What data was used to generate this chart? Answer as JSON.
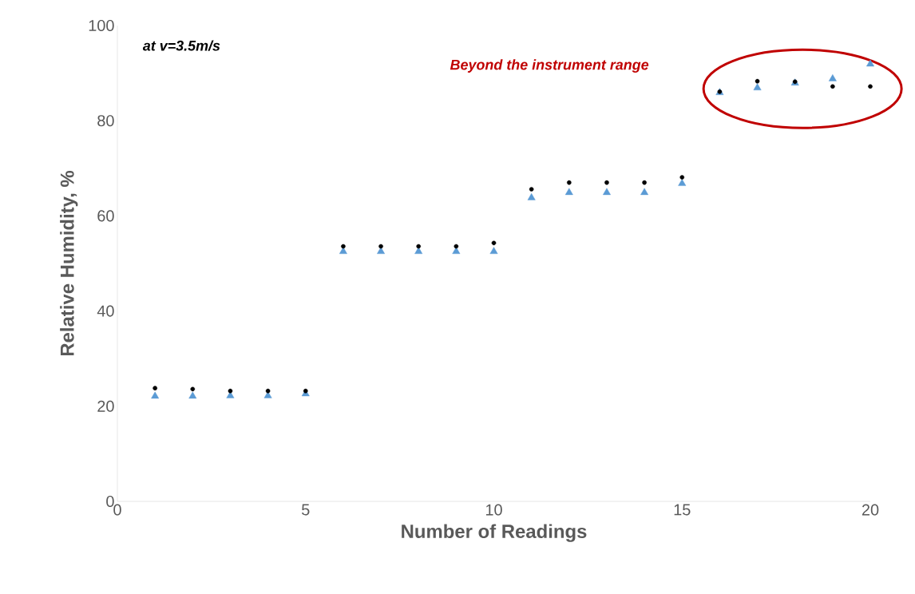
{
  "chart_data": {
    "type": "scatter",
    "xlabel": "Number of Readings",
    "ylabel": "Relative Humidity, %",
    "annotations": [
      "at v=3.5m/s",
      "Beyond the instrument range"
    ],
    "x": [
      1,
      2,
      3,
      4,
      5,
      6,
      7,
      8,
      9,
      10,
      11,
      12,
      13,
      14,
      15,
      16,
      17,
      18,
      19,
      20
    ],
    "series": [
      {
        "color": "#5b9bd5",
        "marker": "triangle",
        "values": [
          22.1,
          22.1,
          22.2,
          22.2,
          22.6,
          52.5,
          52.5,
          52.5,
          52.5,
          52.5,
          63.8,
          64.9,
          64.9,
          64.9,
          66.8,
          85.9,
          86.9,
          87.9,
          88.8,
          91.9
        ]
      },
      {
        "color": "#000000",
        "marker": "circle",
        "values": [
          23.8,
          23.6,
          23.2,
          23.2,
          23.2,
          53.6,
          53.6,
          53.6,
          53.6,
          54.3,
          65.6,
          67.0,
          67.0,
          67.0,
          68.1,
          86.1,
          88.3,
          88.2,
          87.2,
          87.2
        ]
      }
    ],
    "xlim": [
      0,
      20
    ],
    "xticks": [
      0,
      5,
      10,
      15,
      20
    ],
    "ylim": [
      0,
      100
    ],
    "yticks": [
      0,
      20,
      40,
      60,
      80,
      100
    ],
    "grid": false
  }
}
